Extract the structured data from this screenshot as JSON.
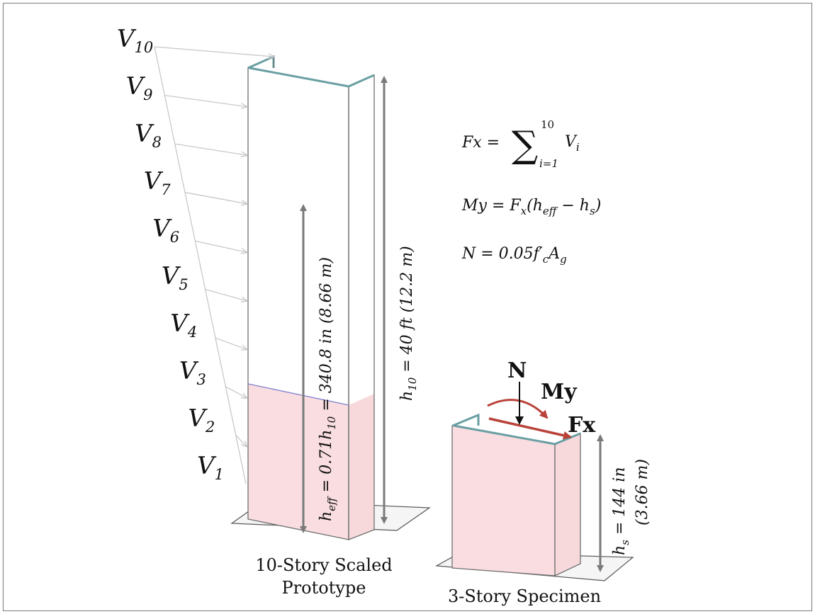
{
  "colors": {
    "frame": "#7f7f7f",
    "wall_fill": "#f9dde0",
    "wall_edge": "#6a9fa3",
    "dimension_arrow": "#7a7a7a",
    "force_arrow": "#b9423a",
    "load_arrow": "#c8c8c8",
    "effective_height_line": "#7f7fcf"
  },
  "loads": {
    "labels": [
      "V",
      "V",
      "V",
      "V",
      "V",
      "V",
      "V",
      "V",
      "V",
      "V"
    ],
    "subscripts": [
      "10",
      "9",
      "8",
      "7",
      "6",
      "5",
      "4",
      "3",
      "2",
      "1"
    ]
  },
  "equations": {
    "fx": {
      "lhs": "Fx =",
      "symbol": "∑",
      "upper": "10",
      "lower": "i=1",
      "term": "V",
      "term_sub": "i"
    },
    "my": {
      "text": "My = F",
      "sub1": "x",
      "open": "(h",
      "sub2": "eff",
      "minus": " − h",
      "sub3": "s",
      "close": ")"
    },
    "n": {
      "text": "N = 0.05f′",
      "sub1": "c",
      "mid": "A",
      "sub2": "g"
    }
  },
  "dimensions": {
    "h_eff": {
      "base": "h",
      "sub": "eff",
      "text": " = 0.71h",
      "sub2": "10",
      "tail": " = 340.8 in (8.66 m)"
    },
    "h_10": {
      "base": "h",
      "sub": "10",
      "tail": " = 40 ft (12.2 m)"
    },
    "h_s": {
      "base": "h",
      "sub": "s",
      "tail": " = 144 in",
      "line2": "(3.66 m)"
    }
  },
  "forces": {
    "n": "N",
    "my": "My",
    "fx": "Fx"
  },
  "captions": {
    "prototype_line1": "10-Story Scaled",
    "prototype_line2": "Prototype",
    "specimen": "3-Story Specimen"
  }
}
